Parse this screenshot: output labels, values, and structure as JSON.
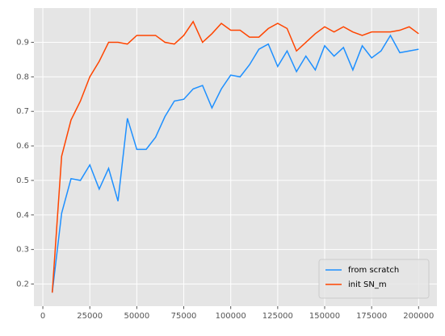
{
  "chart_data": {
    "type": "line",
    "x": [
      5000,
      10000,
      15000,
      20000,
      25000,
      30000,
      35000,
      40000,
      45000,
      50000,
      55000,
      60000,
      65000,
      70000,
      75000,
      80000,
      85000,
      90000,
      95000,
      100000,
      105000,
      110000,
      115000,
      120000,
      125000,
      130000,
      135000,
      140000,
      145000,
      150000,
      155000,
      160000,
      165000,
      170000,
      175000,
      180000,
      185000,
      190000,
      195000,
      200000
    ],
    "series": [
      {
        "name": "from scratch",
        "color": "#1e90ff",
        "values": [
          0.175,
          0.405,
          0.505,
          0.5,
          0.545,
          0.475,
          0.535,
          0.44,
          0.68,
          0.59,
          0.59,
          0.625,
          0.685,
          0.73,
          0.735,
          0.765,
          0.775,
          0.71,
          0.765,
          0.805,
          0.8,
          0.835,
          0.88,
          0.895,
          0.83,
          0.875,
          0.815,
          0.86,
          0.82,
          0.89,
          0.86,
          0.885,
          0.82,
          0.89,
          0.855,
          0.875,
          0.92,
          0.87,
          0.875,
          0.88
        ]
      },
      {
        "name": "init SN_m",
        "color": "#ff4500",
        "values": [
          0.175,
          0.57,
          0.675,
          0.73,
          0.8,
          0.845,
          0.9,
          0.9,
          0.895,
          0.92,
          0.92,
          0.92,
          0.9,
          0.895,
          0.92,
          0.96,
          0.9,
          0.925,
          0.955,
          0.935,
          0.935,
          0.915,
          0.915,
          0.94,
          0.955,
          0.94,
          0.875,
          0.9,
          0.925,
          0.945,
          0.93,
          0.945,
          0.93,
          0.92,
          0.93,
          0.93,
          0.93,
          0.935,
          0.945,
          0.925
        ]
      }
    ],
    "xlim": [
      -4750,
      209750
    ],
    "xticks": [
      0,
      25000,
      50000,
      75000,
      100000,
      125000,
      150000,
      175000,
      200000
    ],
    "ylim": [
      0.13575,
      0.99925
    ],
    "yticks": [
      0.2,
      0.3,
      0.4,
      0.5,
      0.6,
      0.7,
      0.8,
      0.9
    ],
    "grid": true,
    "legend": "lower right"
  }
}
